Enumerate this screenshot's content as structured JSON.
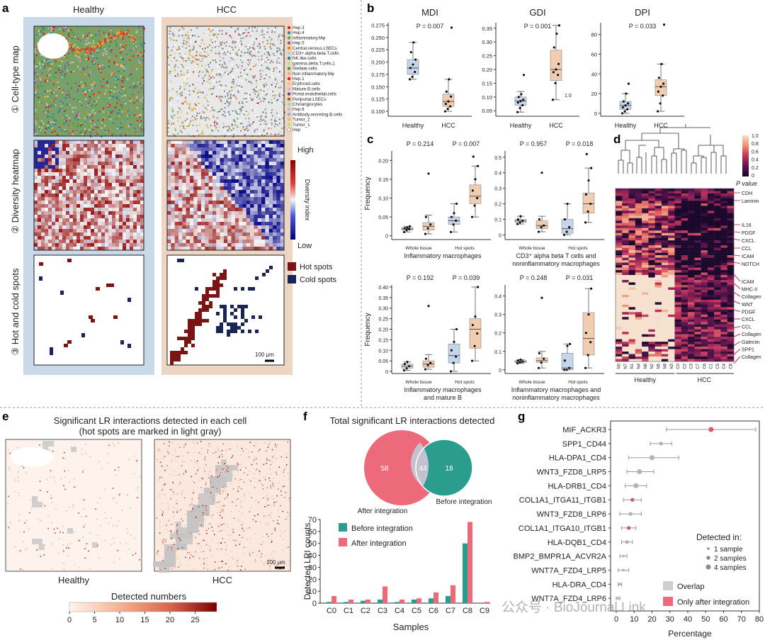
{
  "panels": {
    "a": "a",
    "b": "b",
    "c": "c",
    "d": "d",
    "e": "e",
    "f": "f",
    "g": "g"
  },
  "panel_a": {
    "col_healthy": "Healthy",
    "col_hcc": "HCC",
    "row1": "① Cell-type map",
    "row2": "② Diversity heatmap",
    "row3": "③ Hot and cold spots",
    "legend": [
      "Hep.3",
      "Hep.4",
      "Inflammatory.Mφ",
      "Hep.5",
      "Central.venous.LSECs",
      "CD3+.alpha.beta.T.cells",
      "NK.like.cells",
      "gamma.delta.T.cells.1",
      "Stellate.cells",
      "Non.inflammatory.Mφ",
      "Hep.1",
      "Erythroid.cells",
      "Mature.B.cells",
      "Portal.endothelial.cells",
      "Periportal.LSECs",
      "Cholangiocytes",
      "Hep.6",
      "Antibody.secreting.B.cells",
      "Tumor_2",
      "Tumor_1",
      "Hep"
    ],
    "legend_colors": [
      "#e41a1c",
      "#377eb8",
      "#4daf4a",
      "#984ea3",
      "#ff7f00",
      "#a6cee3",
      "#1f78b4",
      "#b2df8a",
      "#33a02c",
      "#fb9a99",
      "#e31a1c",
      "#fdbf6f",
      "#cab2d6",
      "#6a3d9a",
      "#b15928",
      "#8dd3c7",
      "#bebada",
      "#80b1d3",
      "#fdb462",
      "#b3de69",
      "#ffffff"
    ],
    "colorbar_high": "High",
    "colorbar_low": "Low",
    "colorbar_title": "Diversity index",
    "hot_label": "Hot spots",
    "cold_label": "Cold spots",
    "scale": "100 μm",
    "hot_color": "#7b1515",
    "cold_color": "#1a2457"
  },
  "panel_b": {
    "charts": [
      {
        "title": "MDI",
        "p": "P = 0.007",
        "yticks": [
          "0.100",
          "0.125",
          "0.150",
          "0.175",
          "0.200",
          "0.225",
          "0.250",
          "0.275"
        ],
        "xcats": [
          "Healthy",
          "HCC"
        ],
        "ylim": [
          0.09,
          0.28
        ],
        "boxes": [
          {
            "q1": 0.175,
            "med": 0.188,
            "q3": 0.205,
            "lo": 0.165,
            "hi": 0.24
          },
          {
            "q1": 0.11,
            "med": 0.12,
            "q3": 0.135,
            "lo": 0.1,
            "hi": 0.165
          }
        ],
        "points": [
          [
            0.165,
            0.17,
            0.18,
            0.188,
            0.195,
            0.205,
            0.22,
            0.24
          ],
          [
            0.1,
            0.105,
            0.11,
            0.115,
            0.12,
            0.13,
            0.14,
            0.165,
            0.27
          ]
        ]
      },
      {
        "title": "GDI",
        "p": "P = 0.001",
        "yticks": [
          "0.05",
          "0.10",
          "0.15",
          "0.20",
          "0.25",
          "0.30",
          "0.35"
        ],
        "xcats": [
          "Healthy",
          "HCC"
        ],
        "ylim": [
          0.03,
          0.37
        ],
        "boxes": [
          {
            "q1": 0.07,
            "med": 0.085,
            "q3": 0.1,
            "lo": 0.045,
            "hi": 0.12
          },
          {
            "q1": 0.16,
            "med": 0.2,
            "q3": 0.27,
            "lo": 0.09,
            "hi": 0.36
          }
        ],
        "points": [
          [
            0.045,
            0.06,
            0.07,
            0.08,
            0.085,
            0.09,
            0.1,
            0.11,
            0.18
          ],
          [
            0.09,
            0.15,
            0.18,
            0.19,
            0.2,
            0.22,
            0.28,
            0.33,
            0.36
          ]
        ],
        "annot": "1.0"
      },
      {
        "title": "DPI",
        "p": "P = 0.033",
        "yticks": [
          "0",
          "20",
          "40",
          "60",
          "80"
        ],
        "xcats": [
          "Healthy",
          "HCC"
        ],
        "ylim": [
          -3,
          92
        ],
        "boxes": [
          {
            "q1": 4,
            "med": 8,
            "q3": 12,
            "lo": 0,
            "hi": 20
          },
          {
            "q1": 18,
            "med": 27,
            "q3": 34,
            "lo": 2,
            "hi": 50
          }
        ],
        "points": [
          [
            0,
            2,
            4,
            6,
            8,
            10,
            12,
            20,
            30
          ],
          [
            2,
            10,
            18,
            22,
            27,
            30,
            36,
            50,
            90
          ]
        ]
      }
    ]
  },
  "panel_c": {
    "ylabel": "Frequency",
    "whole": "Whole tissue",
    "hot": "Hot spots",
    "charts": [
      {
        "p1": "P = 0.214",
        "p2": "P = 0.007",
        "label1": "Inflammatory macrophages",
        "label2": "",
        "yticks": [
          "0",
          "0.05",
          "0.10",
          "0.15",
          "0.20"
        ],
        "ylim": [
          -0.01,
          0.225
        ],
        "boxes": [
          {
            "q1": 0.015,
            "med": 0.018,
            "q3": 0.022,
            "lo": 0.01,
            "hi": 0.025,
            "c": "gray"
          },
          {
            "q1": 0.015,
            "med": 0.025,
            "q3": 0.035,
            "lo": 0.005,
            "hi": 0.055,
            "c": "tan"
          },
          {
            "q1": 0.03,
            "med": 0.04,
            "q3": 0.05,
            "lo": 0.01,
            "hi": 0.085,
            "c": "blue"
          },
          {
            "q1": 0.085,
            "med": 0.105,
            "q3": 0.135,
            "lo": 0.05,
            "hi": 0.185,
            "c": "tan"
          }
        ],
        "points": [
          [
            0.01,
            0.015,
            0.018,
            0.02,
            0.022,
            0.025
          ],
          [
            0.005,
            0.02,
            0.03,
            0.05,
            0.165
          ],
          [
            0.01,
            0.03,
            0.04,
            0.05,
            0.06,
            0.085
          ],
          [
            0.05,
            0.08,
            0.1,
            0.12,
            0.15,
            0.185,
            0.21
          ]
        ]
      },
      {
        "p1": "P = 0.957",
        "p2": "P = 0.018",
        "label1": "CD3⁺ alpha beta T cells and",
        "label2": "noninflammatory macrophages",
        "yticks": [
          "0",
          "0.1",
          "0.2",
          "0.3",
          "0.4",
          "0.5"
        ],
        "ylim": [
          -0.03,
          0.54
        ],
        "boxes": [
          {
            "q1": 0.08,
            "med": 0.09,
            "q3": 0.1,
            "lo": 0.07,
            "hi": 0.12,
            "c": "gray"
          },
          {
            "q1": 0.04,
            "med": 0.06,
            "q3": 0.09,
            "lo": 0.02,
            "hi": 0.12,
            "c": "tan"
          },
          {
            "q1": 0.01,
            "med": 0.04,
            "q3": 0.1,
            "lo": 0,
            "hi": 0.2,
            "c": "blue"
          },
          {
            "q1": 0.14,
            "med": 0.2,
            "q3": 0.27,
            "lo": 0.08,
            "hi": 0.43,
            "c": "tan"
          }
        ],
        "points": [
          [
            0.07,
            0.08,
            0.09,
            0.1,
            0.12
          ],
          [
            0.02,
            0.05,
            0.06,
            0.1,
            0.4
          ],
          [
            0,
            0.02,
            0.05,
            0.1,
            0.2
          ],
          [
            0.08,
            0.15,
            0.2,
            0.26,
            0.35,
            0.43,
            0.52
          ]
        ]
      },
      {
        "p1": "P = 0.192",
        "p2": "P = 0.039",
        "label1": "Inflammatory macrophages",
        "label2": "and mature B",
        "yticks": [
          "0",
          "0.05",
          "0.10",
          "0.15",
          "0.20",
          "0.25",
          "0.30",
          "0.35",
          "0.40"
        ],
        "ylim": [
          -0.01,
          0.41
        ],
        "boxes": [
          {
            "q1": 0.015,
            "med": 0.025,
            "q3": 0.035,
            "lo": 0.005,
            "hi": 0.045,
            "c": "gray"
          },
          {
            "q1": 0.02,
            "med": 0.035,
            "q3": 0.05,
            "lo": 0.01,
            "hi": 0.08,
            "c": "tan"
          },
          {
            "q1": 0.04,
            "med": 0.075,
            "q3": 0.13,
            "lo": 0,
            "hi": 0.2,
            "c": "blue"
          },
          {
            "q1": 0.11,
            "med": 0.2,
            "q3": 0.25,
            "lo": 0.05,
            "hi": 0.4,
            "c": "tan"
          }
        ],
        "points": [
          [
            0.005,
            0.015,
            0.025,
            0.035,
            0.045
          ],
          [
            0.01,
            0.03,
            0.04,
            0.06,
            0.31
          ],
          [
            0,
            0.04,
            0.07,
            0.1,
            0.14,
            0.2
          ],
          [
            0.05,
            0.12,
            0.18,
            0.22,
            0.26,
            0.4
          ]
        ]
      },
      {
        "p1": "P = 0.248",
        "p2": "P = 0.031",
        "label1": "Inflammatory macrophages and",
        "label2": "noninflammatory macrophages",
        "yticks": [
          "0",
          "0.1",
          "0.2",
          "0.3",
          "0.4"
        ],
        "ylim": [
          -0.02,
          0.46
        ],
        "boxes": [
          {
            "q1": 0.04,
            "med": 0.045,
            "q3": 0.05,
            "lo": 0.035,
            "hi": 0.055,
            "c": "gray"
          },
          {
            "q1": 0.04,
            "med": 0.05,
            "q3": 0.065,
            "lo": 0.01,
            "hi": 0.1,
            "c": "tan"
          },
          {
            "q1": 0,
            "med": 0.01,
            "q3": 0.09,
            "lo": 0,
            "hi": 0.14,
            "c": "blue"
          },
          {
            "q1": 0.08,
            "med": 0.17,
            "q3": 0.31,
            "lo": 0.01,
            "hi": 0.44,
            "c": "tan"
          }
        ],
        "points": [
          [
            0.035,
            0.04,
            0.045,
            0.05,
            0.055
          ],
          [
            0.01,
            0.04,
            0.06,
            0.09,
            0.39
          ],
          [
            0,
            0,
            0.01,
            0.05,
            0.13,
            0.14
          ],
          [
            0.01,
            0.08,
            0.15,
            0.2,
            0.3,
            0.44
          ]
        ]
      }
    ]
  },
  "panel_d": {
    "colorbar_ticks": [
      "1.0",
      "0.8",
      "0.6",
      "0.4",
      "0.2",
      "0"
    ],
    "colorbar_title": "P value",
    "top_labels": [
      "CDH",
      "Laminin"
    ],
    "mid_labels": [
      "IL16",
      "PDGF",
      "CXCL",
      "CCL",
      "ICAM",
      "NOTCH"
    ],
    "bot_labels": [
      "ICAM",
      "MHC-II",
      "Collagen",
      "WNT",
      "PDGF",
      "CXCL",
      "CCL",
      "Collagen",
      "Galectin",
      "SPP1",
      "Collagen"
    ],
    "samples": [
      "N0",
      "N7",
      "N1",
      "N4",
      "N6",
      "N2",
      "N5",
      "N8",
      "N3",
      "C0",
      "C2",
      "C3",
      "C7",
      "C6",
      "C1",
      "C5",
      "C4",
      "C8"
    ],
    "healthy": "Healthy",
    "hcc": "HCC"
  },
  "panel_e": {
    "title1": "Significant LR interactions detected in each cell",
    "title2": "(hot spots are marked in light gray)",
    "healthy": "Healthy",
    "hcc": "HCC",
    "scale": "100 μm",
    "colorbar_title": "Detected numbers",
    "ticks": [
      "0",
      "5",
      "10",
      "15",
      "20",
      "25"
    ]
  },
  "panel_f": {
    "title": "Total significant LR interactions detected",
    "venn_left": "58",
    "venn_mid": "44",
    "venn_right": "18",
    "after_label": "After integration",
    "before_label": "Before integration",
    "legend_before": "Before integration",
    "legend_after": "After integration",
    "ylabel": "Detected LRI counts",
    "xlabel": "Samples",
    "yticks": [
      "0",
      "10",
      "20",
      "30",
      "40",
      "50",
      "60",
      "70"
    ]
  },
  "panel_g": {
    "xlabel": "Percentage",
    "xticks": [
      "0",
      "10",
      "20",
      "30",
      "40",
      "50",
      "60",
      "70",
      "80"
    ],
    "legend_title": "Detected in:",
    "legend_sizes": [
      "1 sample",
      "2 samples",
      "4 samples"
    ],
    "legend_overlap": "Overlap",
    "legend_only": "Only after integration",
    "rows": [
      {
        "label": "MIF_ACKR3",
        "mean": 53,
        "lo": 28,
        "hi": 78,
        "type": "only",
        "n": 4
      },
      {
        "label": "SPP1_CD44",
        "mean": 25,
        "lo": 19,
        "hi": 31,
        "type": "overlap",
        "n": 2
      },
      {
        "label": "HLA-DPA1_CD4",
        "mean": 20,
        "lo": 7,
        "hi": 35,
        "type": "overlap",
        "n": 4
      },
      {
        "label": "WNT3_FZD8_LRP5",
        "mean": 13,
        "lo": 6,
        "hi": 21,
        "type": "overlap",
        "n": 4
      },
      {
        "label": "HLA-DRB1_CD4",
        "mean": 11,
        "lo": 5,
        "hi": 17,
        "type": "overlap",
        "n": 4
      },
      {
        "label": "COL1A1_ITGA11_ITGB1",
        "mean": 9,
        "lo": 4,
        "hi": 14,
        "type": "only",
        "n": 2
      },
      {
        "label": "WNT3_FZD8_LRP6",
        "mean": 8,
        "lo": 2,
        "hi": 14,
        "type": "overlap",
        "n": 2
      },
      {
        "label": "COL1A1_ITGA10_ITGB1",
        "mean": 7,
        "lo": 3,
        "hi": 11,
        "type": "only",
        "n": 2
      },
      {
        "label": "HLA-DQB1_CD4",
        "mean": 6,
        "lo": 3,
        "hi": 9,
        "type": "overlap",
        "n": 2
      },
      {
        "label": "BMP2_BMPR1A_ACVR2A",
        "mean": 4,
        "lo": 2,
        "hi": 6,
        "type": "overlap",
        "n": 1
      },
      {
        "label": "WNT7A_FZD4_LRP5",
        "mean": 4,
        "lo": 1,
        "hi": 7,
        "type": "overlap",
        "n": 1
      },
      {
        "label": "HLA-DRA_CD4",
        "mean": 2,
        "lo": 1,
        "hi": 3,
        "type": "overlap",
        "n": 1
      },
      {
        "label": "WNT7A_FZD4_LRP6",
        "mean": 1,
        "lo": 0,
        "hi": 2,
        "type": "overlap",
        "n": 1
      }
    ]
  },
  "watermark": "公众号 · BioJournal Link",
  "chart_data": {
    "type": "bar",
    "categories": [
      "C0",
      "C1",
      "C2",
      "C3",
      "C4",
      "C5",
      "C6",
      "C7",
      "C8",
      "C9"
    ],
    "series": [
      {
        "name": "Before integration",
        "values": [
          1,
          1,
          2,
          3,
          1,
          3,
          4,
          6,
          50,
          0
        ]
      },
      {
        "name": "After integration",
        "values": [
          6,
          3,
          3,
          14,
          3,
          4,
          9,
          15,
          68,
          1
        ]
      }
    ],
    "xlabel": "Samples",
    "ylabel": "Detected LRI counts",
    "ylim": [
      0,
      70
    ]
  }
}
